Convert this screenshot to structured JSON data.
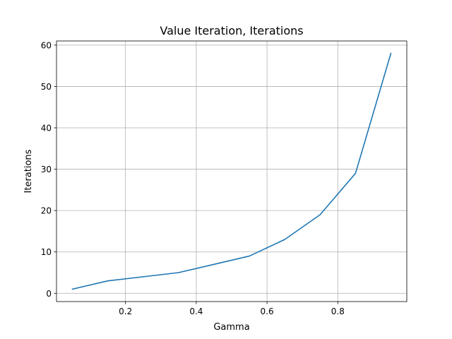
{
  "chart_data": {
    "type": "line",
    "title": "Value Iteration, Iterations",
    "xlabel": "Gamma",
    "ylabel": "Iterations",
    "xlim": [
      0.005,
      0.995
    ],
    "ylim": [
      -2.0,
      61.0
    ],
    "xticks": [
      0.2,
      0.4,
      0.6,
      0.8
    ],
    "xtick_labels": [
      "0.2",
      "0.4",
      "0.6",
      "0.8"
    ],
    "yticks": [
      0,
      10,
      20,
      30,
      40,
      50,
      60
    ],
    "ytick_labels": [
      "0",
      "10",
      "20",
      "30",
      "40",
      "50",
      "60"
    ],
    "grid": true,
    "series": [
      {
        "color": "#1f77b4",
        "x": [
          0.05,
          0.15,
          0.25,
          0.35,
          0.45,
          0.55,
          0.65,
          0.75,
          0.85,
          0.95
        ],
        "y": [
          1,
          3,
          4,
          5,
          7,
          9,
          13,
          19,
          29,
          58
        ]
      }
    ]
  }
}
